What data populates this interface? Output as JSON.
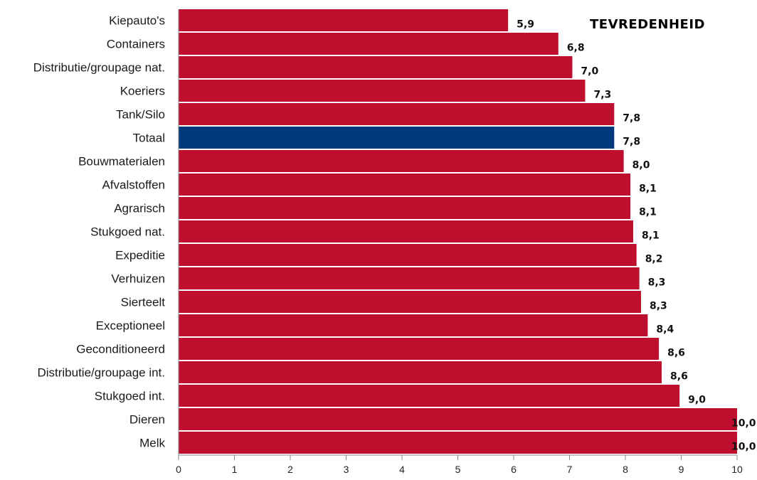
{
  "chart_data": {
    "type": "bar",
    "orientation": "horizontal",
    "title": "TEVREDENHEID",
    "categories": [
      "Kiepauto's",
      "Containers",
      "Distributie/groupage nat.",
      "Koeriers",
      "Tank/Silo",
      "Totaal",
      "Bouwmaterialen",
      "Afvalstoffen",
      "Agrarisch",
      "Stukgoed nat.",
      "Expeditie",
      "Verhuizen",
      "Sierteelt",
      "Exceptioneel",
      "Geconditioneerd",
      "Distributie/groupage int.",
      "Stukgoed int.",
      "Dieren",
      "Melk"
    ],
    "values": [
      5.9,
      6.8,
      7.05,
      7.28,
      7.8,
      7.8,
      7.97,
      8.09,
      8.09,
      8.14,
      8.2,
      8.25,
      8.28,
      8.4,
      8.6,
      8.65,
      8.97,
      10.0,
      10.0
    ],
    "value_labels": [
      "5,9",
      "6,8",
      "7,0",
      "7,3",
      "7,8",
      "7,8",
      "8,0",
      "8,1",
      "8,1",
      "8,1",
      "8,2",
      "8,3",
      "8,3",
      "8,4",
      "8,6",
      "8,6",
      "9,0",
      "10,0",
      "10,0"
    ],
    "highlight_category": "Totaal",
    "xlim": [
      0,
      10
    ],
    "x_ticks": [
      "0",
      "1",
      "2",
      "3",
      "4",
      "5",
      "6",
      "7",
      "8",
      "9",
      "10"
    ],
    "grid": false,
    "legend": "none",
    "colors": {
      "bar": "#be0f2e",
      "highlight": "#003a7d",
      "axis": "#888888"
    }
  }
}
